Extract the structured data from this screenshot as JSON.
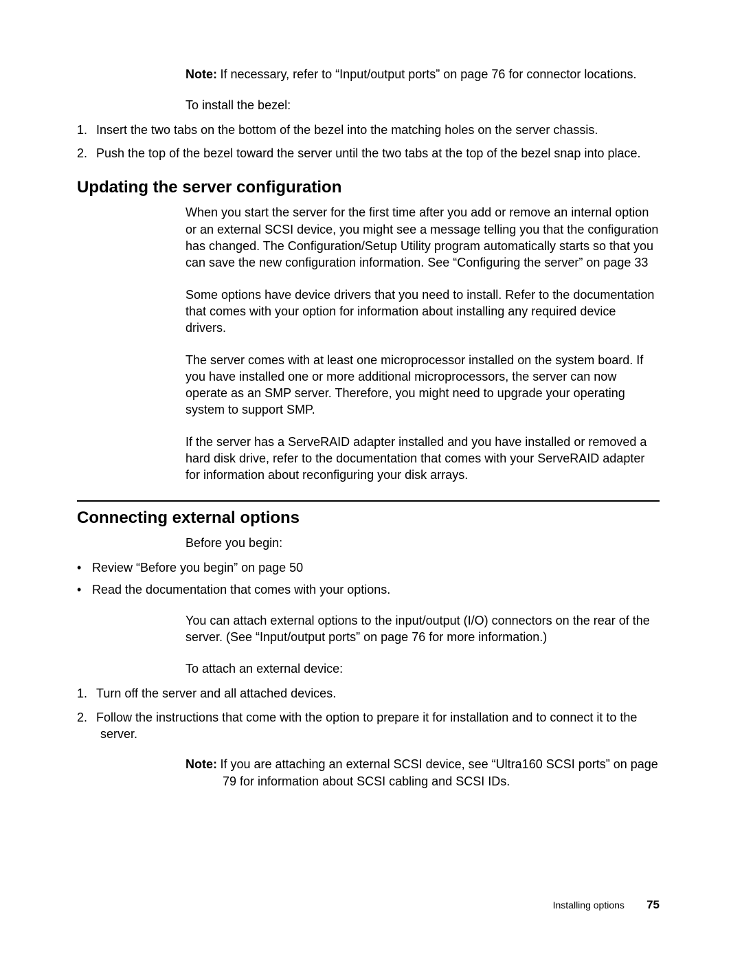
{
  "note1": {
    "label": "Note:",
    "text": "If necessary, refer to “Input/output ports” on page 76 for connector locations."
  },
  "bezel": {
    "intro": "To install the bezel:",
    "items": [
      "Insert the two tabs on the bottom of the bezel into the matching holes on the server chassis.",
      "Push the top of the bezel toward the server until the two tabs at the top of the bezel snap into place."
    ]
  },
  "section1": {
    "title": "Updating the server configuration",
    "p1": "When you start the server for the first time after you add or remove an internal option or an external SCSI device, you might see a message telling you that the configuration has changed. The Configuration/Setup Utility program automatically starts so that you can save the new configuration information. See “Configuring the server” on page 33",
    "p2": "Some options have device drivers that you need to install. Refer to the documentation that comes with your option for information about installing any required device drivers.",
    "p3": "The server comes with at least one microprocessor installed on the system board. If you have installed one or more additional microprocessors, the server can now operate as an SMP server. Therefore, you might need to upgrade your operating system to support SMP.",
    "p4": "If the server has a ServeRAID adapter installed and you have installed or removed a hard disk drive, refer to the documentation that comes with your ServeRAID adapter for information about reconfiguring your disk arrays."
  },
  "section2": {
    "title": "Connecting external options",
    "p1": "Before you begin:",
    "bullets": [
      "Review “Before you begin” on page 50",
      "Read the documentation that comes with your options."
    ],
    "p2": "You can attach external options to the input/output (I/O) connectors on the rear of the server. (See “Input/output ports” on page 76 for more information.)",
    "p3": "To attach an external device:",
    "steps": [
      "Turn off the server and all attached devices.",
      "Follow the instructions that come with the option to prepare it for installation and to connect it to the server."
    ],
    "note": {
      "label": "Note:",
      "text": "If you are attaching an external SCSI device, see “Ultra160 SCSI ports” on page 79 for information about SCSI cabling and SCSI IDs."
    }
  },
  "footer": {
    "chapter": "Installing options",
    "page": "75"
  }
}
